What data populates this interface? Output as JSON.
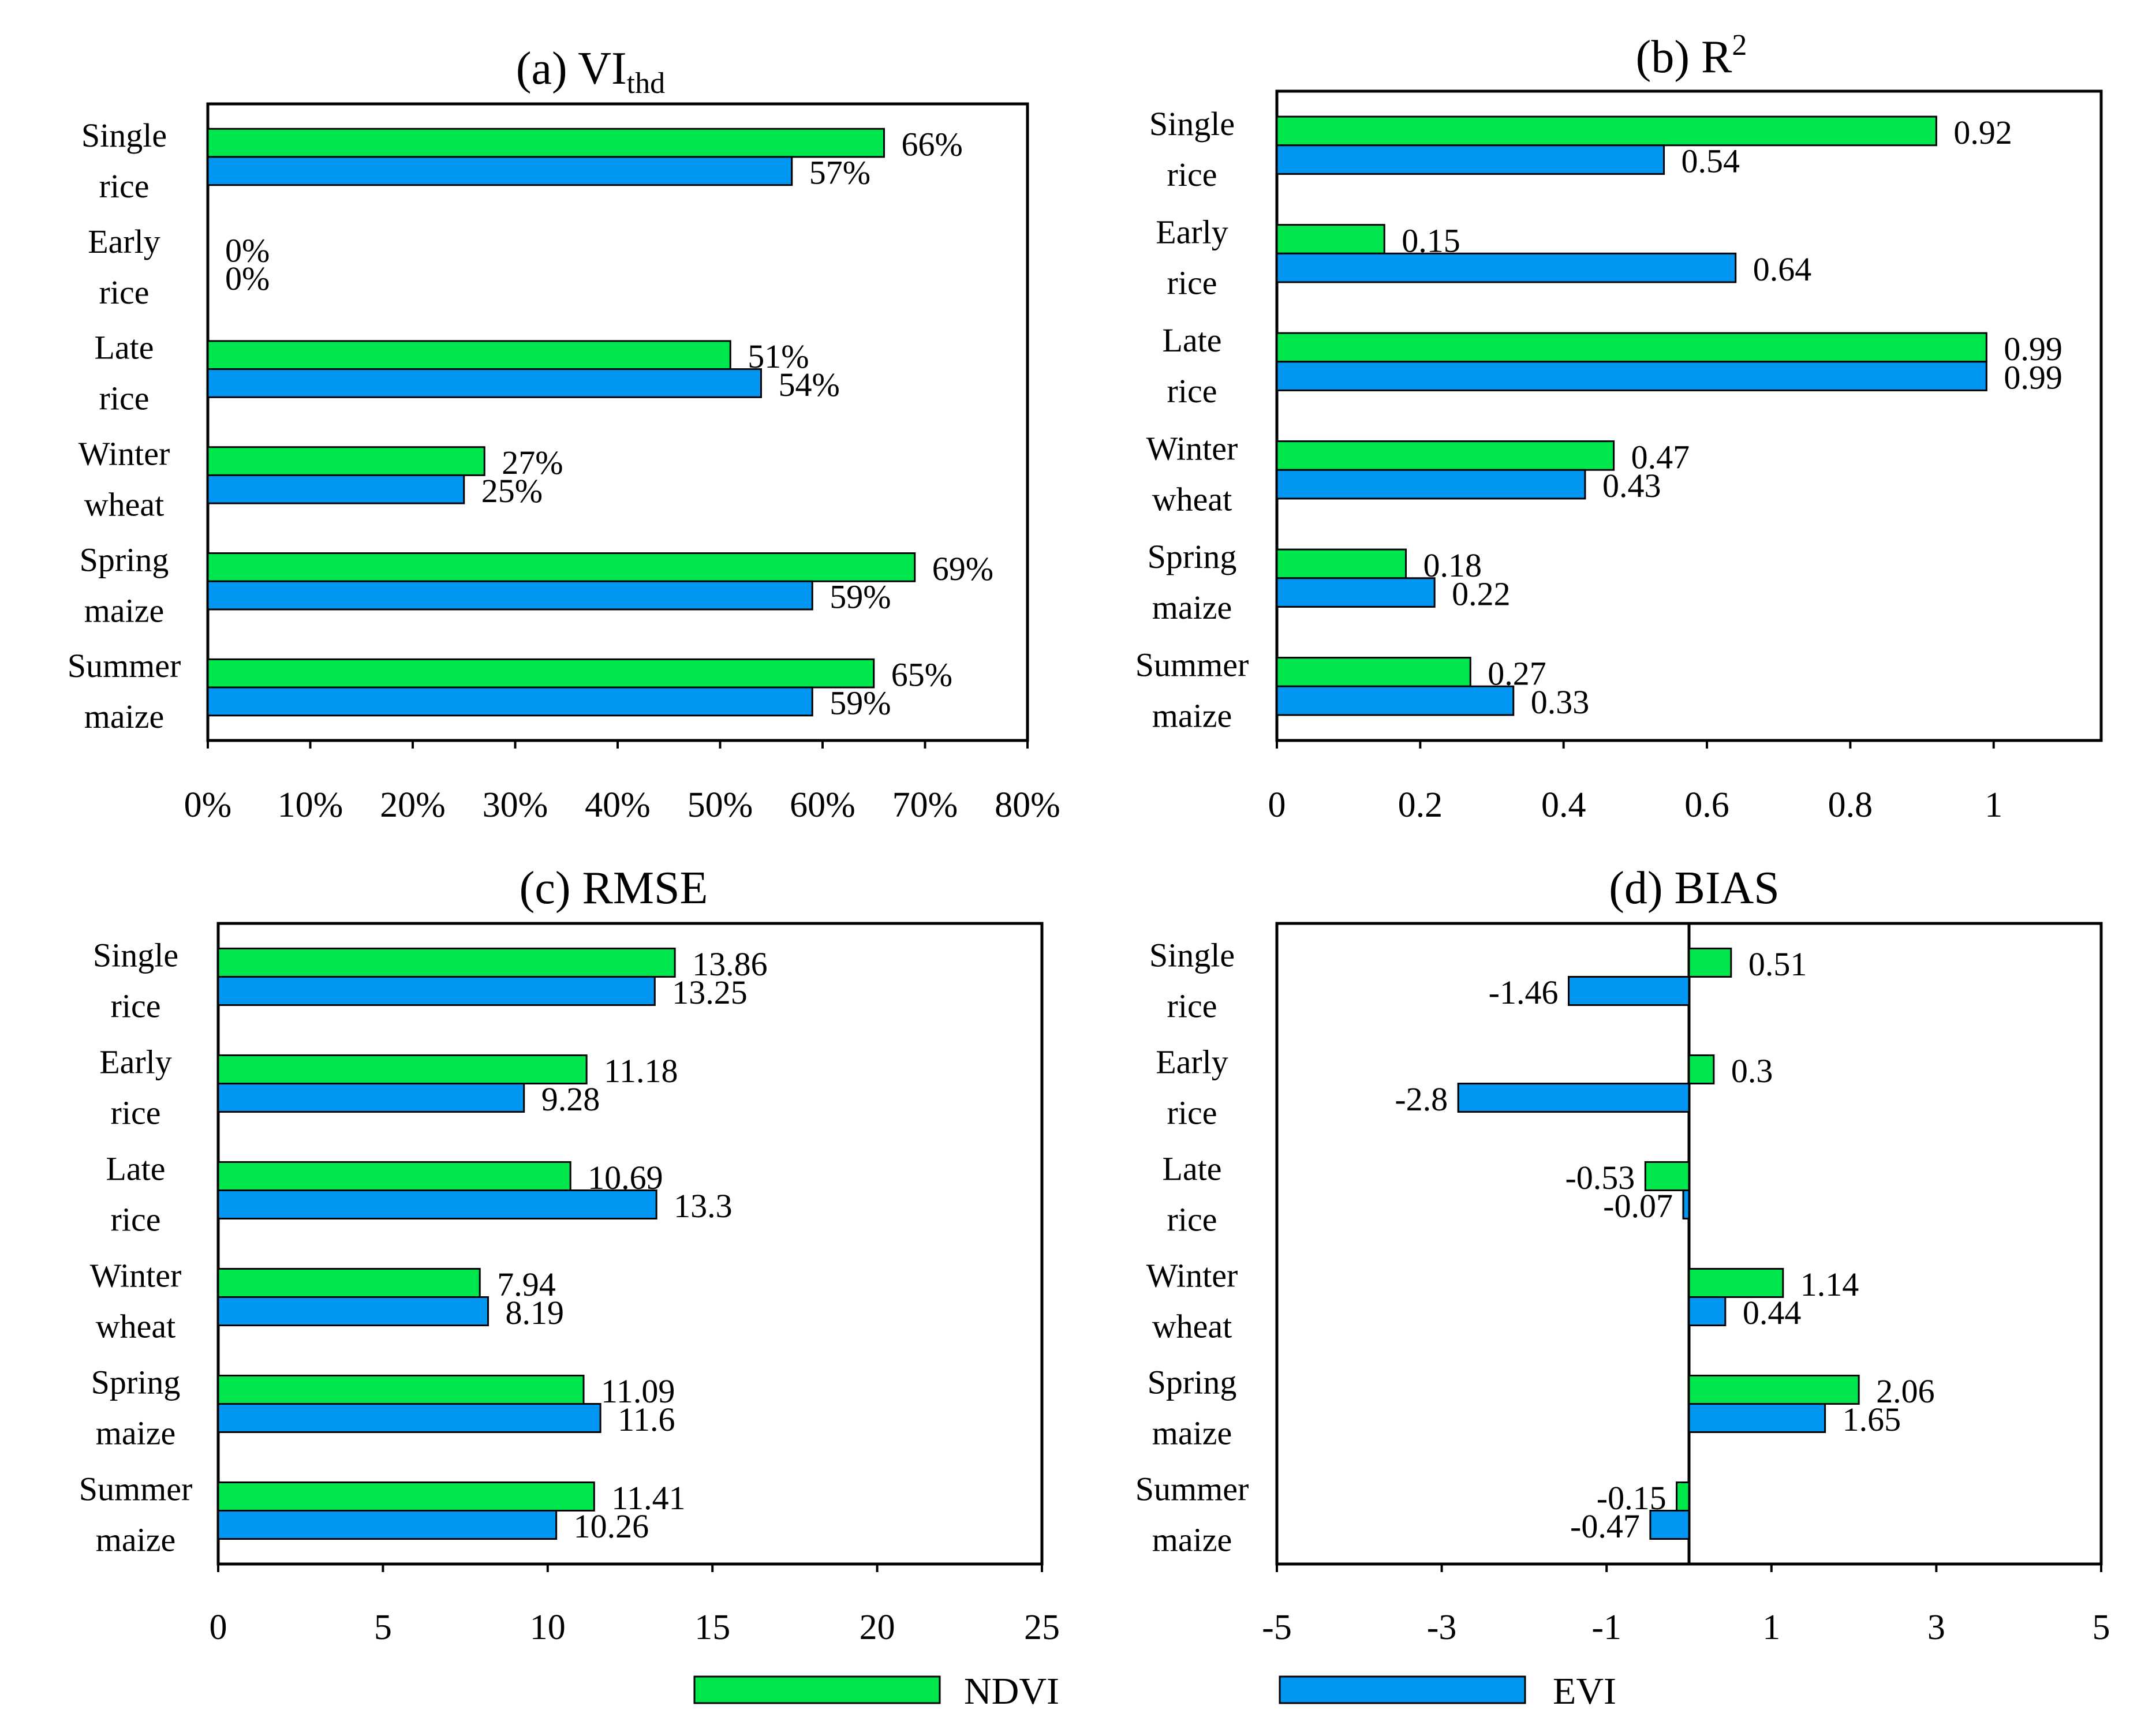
{
  "colors": {
    "ndvi": "#00E64D",
    "evi": "#0096F2",
    "axis": "#000000"
  },
  "legend": {
    "ndvi_label": "NDVI",
    "evi_label": "EVI"
  },
  "chart_data": [
    {
      "id": "a",
      "type": "bar",
      "orientation": "horizontal",
      "title_prefix": "(a) VI",
      "title_sub": "thd",
      "categories": [
        [
          "Single",
          "rice"
        ],
        [
          "Early",
          "rice"
        ],
        [
          "Late",
          "rice"
        ],
        [
          "Winter",
          "wheat"
        ],
        [
          "Spring",
          "maize"
        ],
        [
          "Summer",
          "maize"
        ]
      ],
      "series": [
        {
          "name": "NDVI",
          "values": [
            66,
            0,
            51,
            27,
            69,
            65
          ],
          "labels": [
            "66%",
            "0%",
            "51%",
            "27%",
            "69%",
            "65%"
          ]
        },
        {
          "name": "EVI",
          "values": [
            57,
            0,
            54,
            25,
            59,
            59
          ],
          "labels": [
            "57%",
            "0%",
            "54%",
            "25%",
            "59%",
            "59%"
          ]
        }
      ],
      "xlim": [
        0,
        80
      ],
      "xticks": [
        0,
        10,
        20,
        30,
        40,
        50,
        60,
        70,
        80
      ],
      "xtick_labels": [
        "0%",
        "10%",
        "20%",
        "30%",
        "40%",
        "50%",
        "60%",
        "70%",
        "80%"
      ]
    },
    {
      "id": "b",
      "type": "bar",
      "orientation": "horizontal",
      "title_prefix": "(b) R",
      "title_sup": "2",
      "categories": [
        [
          "Single",
          "rice"
        ],
        [
          "Early",
          "rice"
        ],
        [
          "Late",
          "rice"
        ],
        [
          "Winter",
          "wheat"
        ],
        [
          "Spring",
          "maize"
        ],
        [
          "Summer",
          "maize"
        ]
      ],
      "series": [
        {
          "name": "NDVI",
          "values": [
            0.92,
            0.15,
            0.99,
            0.47,
            0.18,
            0.27
          ],
          "labels": [
            "0.92",
            "0.15",
            "0.99",
            "0.47",
            "0.18",
            "0.27"
          ]
        },
        {
          "name": "EVI",
          "values": [
            0.54,
            0.64,
            0.99,
            0.43,
            0.22,
            0.33
          ],
          "labels": [
            "0.54",
            "0.64",
            "0.99",
            "0.43",
            "0.22",
            "0.33"
          ]
        }
      ],
      "xlim": [
        0,
        1.15
      ],
      "xticks": [
        0,
        0.2,
        0.4,
        0.6,
        0.8,
        1
      ],
      "xtick_labels": [
        "0",
        "0.2",
        "0.4",
        "0.6",
        "0.8",
        "1"
      ]
    },
    {
      "id": "c",
      "type": "bar",
      "orientation": "horizontal",
      "title_prefix": "(c) RMSE",
      "categories": [
        [
          "Single",
          "rice"
        ],
        [
          "Early",
          "rice"
        ],
        [
          "Late",
          "rice"
        ],
        [
          "Winter",
          "wheat"
        ],
        [
          "Spring",
          "maize"
        ],
        [
          "Summer",
          "maize"
        ]
      ],
      "series": [
        {
          "name": "NDVI",
          "values": [
            13.86,
            11.18,
            10.69,
            7.94,
            11.09,
            11.41
          ],
          "labels": [
            "13.86",
            "11.18",
            "10.69",
            "7.94",
            "11.09",
            "11.41"
          ]
        },
        {
          "name": "EVI",
          "values": [
            13.25,
            9.28,
            13.3,
            8.19,
            11.6,
            10.26
          ],
          "labels": [
            "13.25",
            "9.28",
            "13.3",
            "8.19",
            "11.6",
            "10.26"
          ]
        }
      ],
      "xlim": [
        0,
        25
      ],
      "xticks": [
        0,
        5,
        10,
        15,
        20,
        25
      ],
      "xtick_labels": [
        "0",
        "5",
        "10",
        "15",
        "20",
        "25"
      ]
    },
    {
      "id": "d",
      "type": "bar",
      "orientation": "horizontal",
      "title_prefix": "(d) BIAS",
      "categories": [
        [
          "Single",
          "rice"
        ],
        [
          "Early",
          "rice"
        ],
        [
          "Late",
          "rice"
        ],
        [
          "Winter",
          "wheat"
        ],
        [
          "Spring",
          "maize"
        ],
        [
          "Summer",
          "maize"
        ]
      ],
      "series": [
        {
          "name": "NDVI",
          "values": [
            0.51,
            0.3,
            -0.53,
            1.14,
            2.06,
            -0.15
          ],
          "labels": [
            "0.51",
            "0.3",
            "-0.53",
            "1.14",
            "2.06",
            "-0.15"
          ]
        },
        {
          "name": "EVI",
          "values": [
            -1.46,
            -2.8,
            -0.07,
            0.44,
            1.65,
            -0.47
          ],
          "labels": [
            "-1.46",
            "-2.8",
            "-0.07",
            "0.44",
            "1.65",
            "-0.47"
          ]
        }
      ],
      "xlim": [
        -5,
        5
      ],
      "xticks": [
        -5,
        -3,
        -1,
        1,
        3,
        5
      ],
      "xtick_labels": [
        "-5",
        "-3",
        "-1",
        "1",
        "3",
        "5"
      ],
      "zero_line": true
    }
  ]
}
